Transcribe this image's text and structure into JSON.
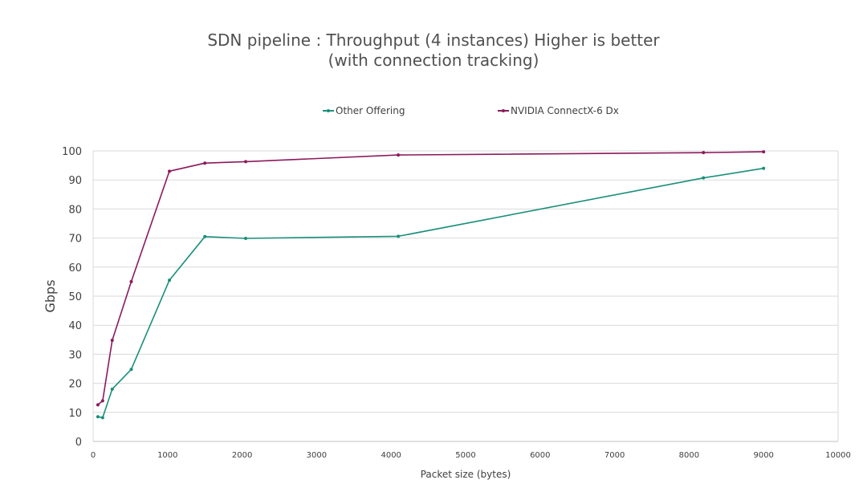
{
  "chart_data": {
    "type": "line",
    "title": "SDN pipeline : Throughput (4 instances) Higher is better",
    "subtitle": "(with connection tracking)",
    "xlabel": "Packet size (bytes)",
    "ylabel": "Gbps",
    "xlim": [
      0,
      10000
    ],
    "ylim": [
      0,
      100
    ],
    "xticks": [
      0,
      1000,
      2000,
      3000,
      4000,
      5000,
      6000,
      7000,
      8000,
      9000,
      10000
    ],
    "yticks": [
      0,
      10,
      20,
      30,
      40,
      50,
      60,
      70,
      80,
      90,
      100
    ],
    "grid": true,
    "legend": "top-center",
    "series": [
      {
        "name": "Other Offering",
        "color": "#1a8f7a",
        "x": [
          64,
          128,
          256,
          512,
          1024,
          1500,
          2048,
          4096,
          8192,
          9000
        ],
        "y": [
          8.5,
          8.2,
          18,
          24.8,
          55.5,
          70.5,
          69.9,
          70.6,
          90.7,
          94
        ]
      },
      {
        "name": "NVIDIA ConnectX-6 Dx",
        "color": "#8b1a5c",
        "x": [
          64,
          128,
          256,
          512,
          1024,
          1500,
          2048,
          4096,
          8192,
          9000
        ],
        "y": [
          12.6,
          14,
          34.8,
          55,
          93,
          95.8,
          96.3,
          98.6,
          99.4,
          99.7
        ]
      }
    ]
  }
}
